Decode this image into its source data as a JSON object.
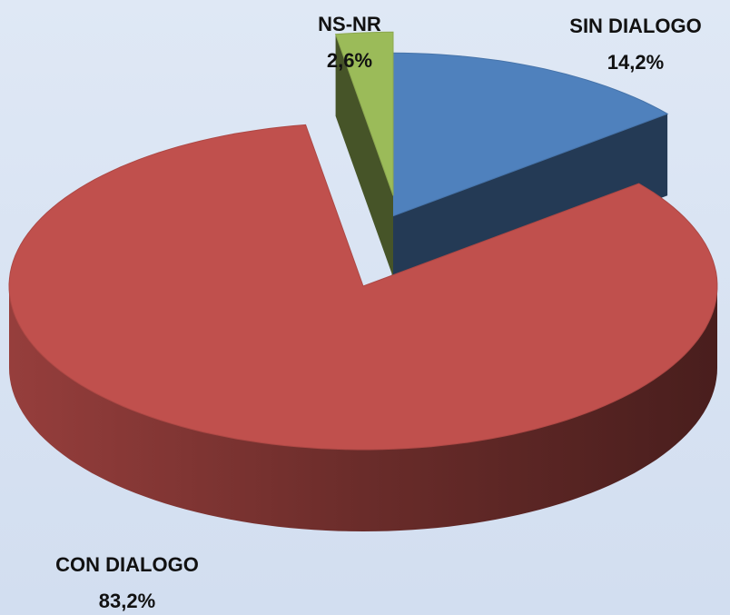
{
  "chart_data": {
    "type": "pie",
    "categories": [
      "SIN DIALOGO",
      "CON DIALOGO",
      "NS-NR"
    ],
    "values": [
      14.2,
      83.2,
      2.6
    ],
    "value_labels": [
      "14,2%",
      "83,2%",
      "2,6%"
    ],
    "colors": [
      "#4f81bd",
      "#c0504d",
      "#9bbb59"
    ]
  }
}
